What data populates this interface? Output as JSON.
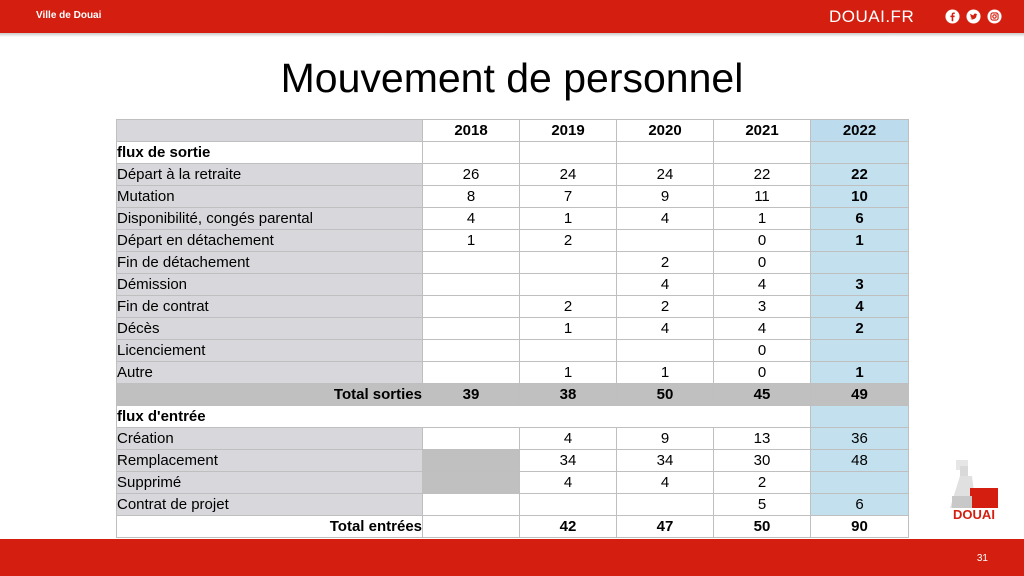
{
  "header": {
    "city": "Ville de Douai",
    "site": "DOUAI.FR",
    "social_icons": [
      "facebook-icon",
      "twitter-icon",
      "instagram-icon"
    ],
    "bar_color": "#d41f10"
  },
  "slide": {
    "title": "Mouvement de personnel",
    "page_number": "31"
  },
  "table": {
    "years": [
      "2018",
      "2019",
      "2020",
      "2021",
      "2022"
    ],
    "sortie_title": "flux de sortie",
    "sortie_rows": [
      {
        "label": "Départ à la retraite",
        "values": [
          "26",
          "24",
          "24",
          "22",
          "22"
        ]
      },
      {
        "label": "Mutation",
        "values": [
          "8",
          "7",
          "9",
          "11",
          "10"
        ]
      },
      {
        "label": "Disponibilité, congés parental",
        "values": [
          "4",
          "1",
          "4",
          "1",
          "6"
        ]
      },
      {
        "label": "Départ en détachement",
        "values": [
          "1",
          "2",
          "",
          "0",
          "1"
        ]
      },
      {
        "label": "Fin de détachement",
        "values": [
          "",
          "",
          "2",
          "0",
          ""
        ]
      },
      {
        "label": "Démission",
        "values": [
          "",
          "",
          "4",
          "4",
          "3"
        ]
      },
      {
        "label": "Fin de contrat",
        "values": [
          "",
          "2",
          "2",
          "3",
          "4"
        ]
      },
      {
        "label": "Décès",
        "values": [
          "",
          "1",
          "4",
          "4",
          "2"
        ]
      },
      {
        "label": "Licenciement",
        "values": [
          "",
          "",
          "",
          "0",
          ""
        ]
      },
      {
        "label": "Autre",
        "values": [
          "",
          "1",
          "1",
          "0",
          "1"
        ]
      }
    ],
    "total_sorties": {
      "label": "Total sorties",
      "values": [
        "39",
        "38",
        "50",
        "45",
        "49"
      ]
    },
    "entree_title": "flux d'entrée",
    "entree_rows": [
      {
        "label": "Création",
        "values": [
          "",
          "4",
          "9",
          "13",
          "36"
        ]
      },
      {
        "label": "Remplacement",
        "values": [
          "",
          "34",
          "34",
          "30",
          "48"
        ]
      },
      {
        "label": "Supprimé",
        "values": [
          "",
          "4",
          "4",
          "2",
          ""
        ]
      },
      {
        "label": "Contrat de projet",
        "values": [
          "",
          "",
          "",
          "5",
          "6"
        ]
      }
    ],
    "total_entrees": {
      "label": "Total entrées",
      "values": [
        "",
        "42",
        "47",
        "50",
        "90"
      ]
    }
  },
  "logo": {
    "text": "DOUAI"
  }
}
